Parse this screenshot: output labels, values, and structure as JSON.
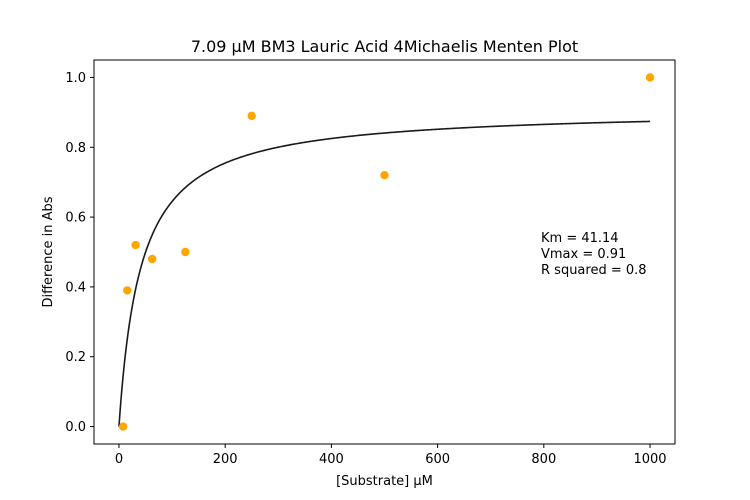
{
  "chart_data": {
    "type": "scatter",
    "title": "7.09 µM BM3 Lauric Acid 4Michaelis Menten Plot",
    "xlabel": "[Substrate] µM",
    "ylabel": "Difference in Abs",
    "xlim": [
      -47,
      1047
    ],
    "ylim": [
      -0.05,
      1.05
    ],
    "xticks": [
      0,
      200,
      400,
      600,
      800,
      1000
    ],
    "xtick_labels": [
      "0",
      "200",
      "400",
      "600",
      "800",
      "1000"
    ],
    "yticks": [
      0.0,
      0.2,
      0.4,
      0.6,
      0.8,
      1.0
    ],
    "ytick_labels": [
      "0.0",
      "0.2",
      "0.4",
      "0.6",
      "0.8",
      "1.0"
    ],
    "grid": false,
    "points": {
      "x": [
        7.8,
        15.6,
        31.25,
        62.5,
        125,
        250,
        500,
        1000
      ],
      "y": [
        0.0,
        0.39,
        0.52,
        0.48,
        0.5,
        0.89,
        0.72,
        1.0
      ],
      "color": "#ffa500"
    },
    "fit": {
      "model": "michaelis-menten",
      "Km": 41.14,
      "Vmax": 0.91,
      "x_range": [
        0,
        1000
      ],
      "color": "#1a1a1a"
    },
    "annotation": {
      "lines": [
        "Km = 41.14",
        "Vmax = 0.91",
        "R squared = 0.8"
      ]
    }
  }
}
